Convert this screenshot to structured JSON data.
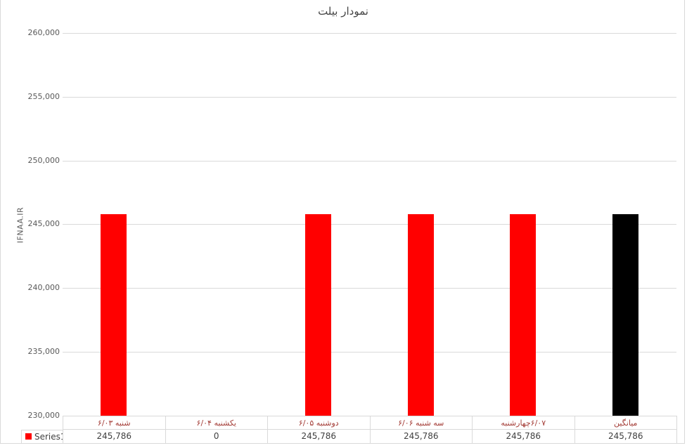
{
  "chart_data": {
    "type": "bar",
    "title": "نمودار بیلت",
    "ylabel": "IFNAA.IR",
    "xlabel": "",
    "categories": [
      "شنبه ۶/۰۳",
      "یکشنبه ۶/۰۴",
      "دوشنبه ۶/۰۵",
      "سه شنبه ۶/۰۶",
      "۶/۰۷چهارشنبه",
      "میانگین"
    ],
    "series": [
      {
        "name": "Series1",
        "values": [
          245786,
          0,
          245786,
          245786,
          245786,
          245786
        ]
      }
    ],
    "ylim": [
      230000,
      260000
    ],
    "ytick_step": 5000,
    "ytick_labels": [
      "260,000",
      "255,000",
      "250,000",
      "245,000",
      "240,000",
      "235,000",
      "230,000"
    ],
    "grid": true,
    "legend_position": "bottom-left",
    "bar_colors": [
      "#ff0000",
      "#ff0000",
      "#ff0000",
      "#ff0000",
      "#ff0000",
      "#000000"
    ]
  },
  "table": {
    "legend_label": "Series1",
    "legend_color": "#ff0000",
    "values": [
      "245,786",
      "0",
      "245,786",
      "245,786",
      "245,786",
      "245,786"
    ]
  },
  "colors": {
    "red_bar": "#ff0000",
    "average_bar": "#000000",
    "gridline": "#d9d9d9",
    "table_border": "#d9d9d9",
    "category_label": "#a33b35",
    "axis_label": "#595959",
    "value_text": "#3f3f3f"
  }
}
